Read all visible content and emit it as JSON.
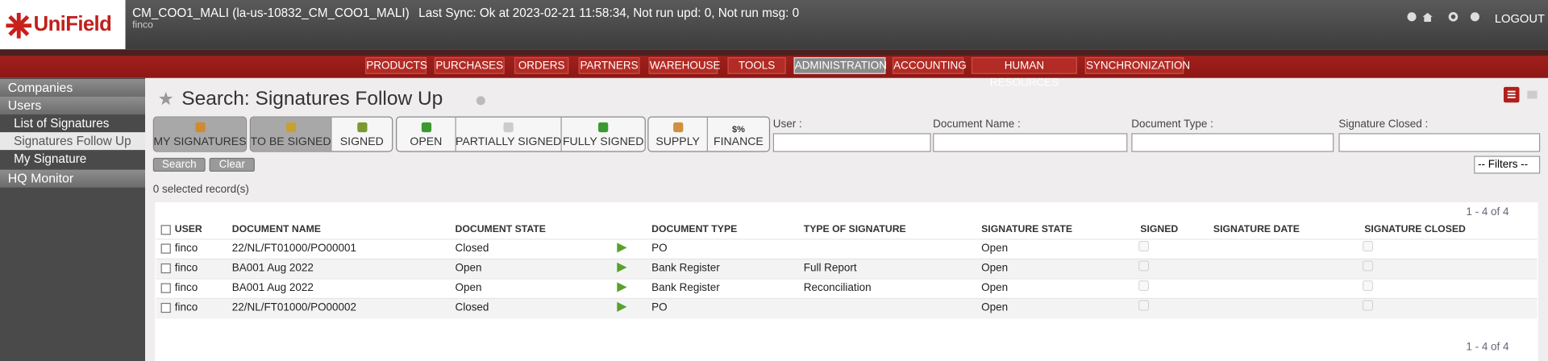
{
  "header": {
    "logo": "UniField",
    "instance": "CM_COO1_MALI (la-us-10832_CM_COO1_MALI)",
    "sync": "Last Sync: Ok at 2023-02-21 11:58:34, Not run upd: 0, Not run msg: 0",
    "user": "finco",
    "logout": "LOGOUT"
  },
  "menu": {
    "items": [
      "PRODUCTS",
      "PURCHASES",
      "ORDERS",
      "PARTNERS",
      "WAREHOUSE",
      "TOOLS",
      "ADMINISTRATION",
      "ACCOUNTING",
      "HUMAN RESOURCES",
      "SYNCHRONIZATION"
    ],
    "active": 6
  },
  "sidebar": {
    "sections": [
      {
        "title": "Companies"
      },
      {
        "title": "Users",
        "links": [
          "List of Signatures",
          "Signatures Follow Up",
          "My Signature"
        ],
        "active": 1
      },
      {
        "title": "HQ Monitor"
      }
    ]
  },
  "search": {
    "title": "Search: Signatures Follow Up",
    "filter_groups": [
      {
        "buttons": [
          "MY SIGNATURES"
        ],
        "pressed": [
          0
        ]
      },
      {
        "buttons": [
          "TO BE SIGNED",
          "SIGNED"
        ],
        "pressed": [
          0
        ]
      },
      {
        "buttons": [
          "OPEN",
          "PARTIALLY SIGNED",
          "FULLY SIGNED"
        ],
        "pressed": []
      },
      {
        "buttons": [
          "SUPPLY",
          "FINANCE"
        ],
        "pressed": []
      }
    ],
    "finance_icon": "$%",
    "fields": [
      "User :",
      "Document Name :",
      "Document Type :",
      "Signature Closed :"
    ],
    "search_button": "Search",
    "clear_button": "Clear",
    "filters": "-- Filters --",
    "selected": "0 selected record(s)"
  },
  "table": {
    "pager": "1 - 4 of 4",
    "columns": [
      "USER",
      "DOCUMENT NAME",
      "DOCUMENT STATE",
      "DOCUMENT TYPE",
      "TYPE OF SIGNATURE",
      "SIGNATURE STATE",
      "SIGNED",
      "SIGNATURE DATE",
      "SIGNATURE CLOSED"
    ],
    "rows": [
      {
        "user": "finco",
        "document_name": "22/NL/FT01000/PO00001",
        "document_state": "Closed",
        "document_type": "PO",
        "signature_state": "Open",
        "signed": false,
        "signature_closed": false
      },
      {
        "user": "finco",
        "document_name": "BA001 Aug 2022",
        "document_state": "Open",
        "document_type": "Bank Register",
        "type_of_signature": "Full Report",
        "signature_state": "Open",
        "signed": false,
        "signature_closed": false
      },
      {
        "user": "finco",
        "document_name": "BA001 Aug 2022",
        "document_state": "Open",
        "document_type": "Bank Register",
        "type_of_signature": "Reconciliation",
        "signature_state": "Open",
        "signed": false,
        "signature_closed": false
      },
      {
        "user": "finco",
        "document_name": "22/NL/FT01000/PO00002",
        "document_state": "Closed",
        "document_type": "PO",
        "signature_state": "Open",
        "signed": false,
        "signature_closed": false
      }
    ]
  }
}
